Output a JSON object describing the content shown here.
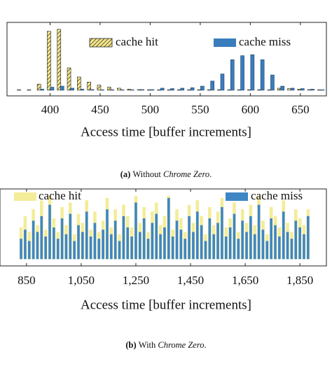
{
  "chart_data": [
    {
      "type": "bar",
      "bar_layout": "grouped",
      "x": [
        370,
        380,
        390,
        400,
        410,
        420,
        430,
        440,
        450,
        460,
        470,
        480,
        490,
        500,
        510,
        520,
        530,
        540,
        550,
        560,
        570,
        580,
        590,
        600,
        610,
        620,
        630,
        640,
        650,
        660,
        670
      ],
      "series": [
        {
          "name": "cache hit",
          "color": "#f5e68a",
          "hatch": true,
          "values": [
            2,
            2,
            30,
            290,
            300,
            110,
            65,
            40,
            25,
            15,
            10,
            5,
            3,
            2,
            2,
            2,
            2,
            2,
            2,
            2,
            2,
            2,
            2,
            2,
            2,
            2,
            10,
            8,
            5,
            3,
            2
          ]
        },
        {
          "name": "cache miss",
          "color": "#3a7dbd",
          "hatch": false,
          "values": [
            0,
            0,
            5,
            15,
            20,
            10,
            5,
            3,
            2,
            2,
            2,
            2,
            3,
            3,
            10,
            8,
            10,
            12,
            20,
            45,
            80,
            150,
            170,
            175,
            150,
            75,
            20,
            10,
            8,
            5,
            2
          ]
        }
      ],
      "xlim": [
        357,
        676
      ],
      "xticks": [
        400,
        450,
        500,
        550,
        600,
        650
      ],
      "ylim": [
        -28,
        334
      ],
      "xlabel": "Access time [buffer increments]",
      "legend": "top",
      "caption": {
        "label": "(a)",
        "text": "Without",
        "emphasis": "Chrome Zero",
        "end": "."
      }
    },
    {
      "type": "bar",
      "bar_layout": "overlay",
      "x": [
        830,
        845,
        860,
        875,
        890,
        905,
        920,
        935,
        950,
        965,
        980,
        995,
        1010,
        1025,
        1040,
        1055,
        1070,
        1085,
        1100,
        1115,
        1130,
        1145,
        1160,
        1175,
        1190,
        1205,
        1220,
        1235,
        1250,
        1265,
        1280,
        1295,
        1310,
        1325,
        1340,
        1355,
        1370,
        1385,
        1400,
        1415,
        1430,
        1445,
        1460,
        1475,
        1490,
        1505,
        1520,
        1535,
        1550,
        1565,
        1580,
        1595,
        1610,
        1625,
        1640,
        1655,
        1670,
        1685,
        1700,
        1715,
        1730,
        1745,
        1760,
        1775,
        1790,
        1805,
        1820,
        1835,
        1850,
        1865,
        1880
      ],
      "series": [
        {
          "name": "cache hit",
          "color": "#f3ec99",
          "hatch": false,
          "values": [
            14,
            19,
            12,
            22,
            15,
            26,
            13,
            28,
            18,
            12,
            23,
            15,
            25,
            11,
            20,
            16,
            26,
            13,
            21,
            12,
            17,
            27,
            14,
            22,
            11,
            24,
            19,
            14,
            28,
            16,
            23,
            12,
            21,
            25,
            15,
            19,
            28,
            13,
            22,
            18,
            12,
            24,
            16,
            26,
            19,
            11,
            23,
            15,
            21,
            27,
            14,
            18,
            25,
            12,
            22,
            16,
            24,
            15,
            28,
            17,
            11,
            23,
            19,
            14,
            26,
            16,
            12,
            22,
            18,
            15,
            22
          ]
        },
        {
          "name": "cache miss",
          "color": "#3f86c4",
          "hatch": false,
          "values": [
            9,
            13,
            8,
            17,
            12,
            19,
            10,
            24,
            14,
            9,
            18,
            11,
            20,
            8,
            15,
            12,
            21,
            10,
            16,
            9,
            13,
            22,
            11,
            17,
            8,
            19,
            14,
            10,
            25,
            12,
            18,
            9,
            16,
            20,
            11,
            14,
            27,
            10,
            17,
            13,
            9,
            19,
            12,
            21,
            15,
            8,
            18,
            11,
            16,
            23,
            10,
            14,
            20,
            9,
            17,
            12,
            19,
            11,
            24,
            13,
            8,
            18,
            15,
            10,
            21,
            12,
            9,
            17,
            14,
            11,
            19
          ]
        }
      ],
      "xlim": [
        753,
        1947
      ],
      "xticks": [
        850,
        {
          "value": 1050,
          "label": "1,050"
        },
        {
          "value": 1250,
          "label": "1,250"
        },
        {
          "value": 1450,
          "label": "1,450"
        },
        {
          "value": 1650,
          "label": "1,650"
        },
        {
          "value": 1850,
          "label": "1,850"
        }
      ],
      "ylim": [
        -3,
        31
      ],
      "xlabel": "Access time [buffer increments]",
      "legend": "top",
      "caption": {
        "label": "(b)",
        "text": "With",
        "emphasis": "Chrome Zero",
        "end": "."
      }
    }
  ]
}
